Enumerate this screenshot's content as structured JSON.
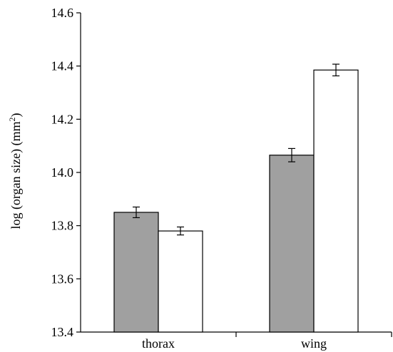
{
  "chart_data": {
    "type": "bar",
    "title": "",
    "xlabel": "",
    "ylabel": "log (organ size) (mm",
    "ylabel_superscript": "2",
    "ylabel_suffix": ")",
    "ylim": [
      13.4,
      14.6
    ],
    "yticks": [
      "13.4",
      "13.6",
      "13.8",
      "14.0",
      "14.2",
      "14.4",
      "14.6"
    ],
    "categories": [
      "thorax",
      "wing"
    ],
    "grid": false,
    "legend": "none",
    "series": [
      {
        "color": "#a0a0a0",
        "values": [
          13.85,
          14.065
        ],
        "errors": [
          0.02,
          0.025
        ]
      },
      {
        "color": "#ffffff",
        "values": [
          13.78,
          14.385
        ],
        "errors": [
          0.015,
          0.022
        ]
      }
    ]
  }
}
